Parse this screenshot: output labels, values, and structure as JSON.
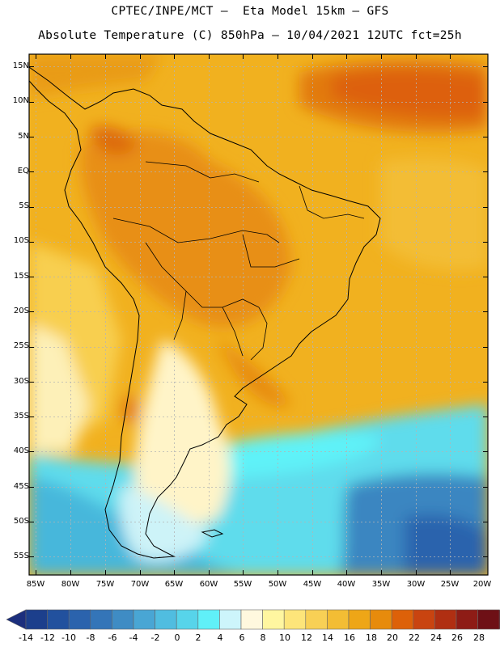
{
  "header": {
    "line1": "CPTEC/INPE/MCT –  Eta Model 15km – GFS",
    "line2": "Absolute Temperature (C) 850hPa – 10/04/2021 12UTC fct=25h"
  },
  "map": {
    "region": "South America",
    "variable": "Absolute Temperature (C) 850hPa",
    "gridlines": "dotted",
    "lat_labels": [
      "15N",
      "10N",
      "5N",
      "EQ",
      "5S",
      "10S",
      "15S",
      "20S",
      "25S",
      "30S",
      "35S",
      "40S",
      "45S",
      "50S",
      "55S"
    ],
    "lon_labels": [
      "85W",
      "80W",
      "75W",
      "70W",
      "65W",
      "60W",
      "55W",
      "50W",
      "45W",
      "40W",
      "35W",
      "30W",
      "25W",
      "20W"
    ]
  },
  "colorbar": {
    "labels": [
      "-14",
      "-12",
      "-10",
      "-8",
      "-6",
      "-4",
      "-2",
      "0",
      "2",
      "4",
      "6",
      "8",
      "10",
      "12",
      "14",
      "16",
      "18",
      "20",
      "22",
      "24",
      "26",
      "28"
    ],
    "colors": [
      "#1c3f8c",
      "#22519e",
      "#2b63ad",
      "#3475b8",
      "#3f8cc4",
      "#49a6d4",
      "#50bde0",
      "#57d4ea",
      "#60f0f8",
      "#cdf5fb",
      "#fff8de",
      "#fff6a0",
      "#fde57a",
      "#f8d055",
      "#f3bd34",
      "#eea617",
      "#e78b0c",
      "#dd6109",
      "#c94410",
      "#b02f12",
      "#8e1c16",
      "#6e1016"
    ],
    "under_color": "#1c2f7d",
    "over_color": "#5c0916"
  }
}
